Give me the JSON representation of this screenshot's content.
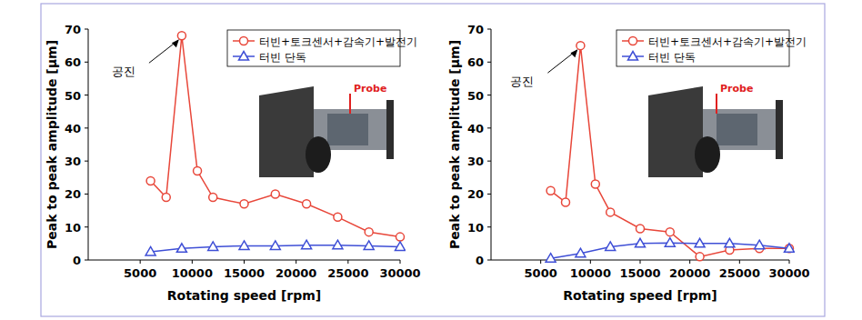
{
  "chart_data": [
    {
      "type": "line",
      "xlabel": "Rotating speed [rpm]",
      "ylabel": "Peak to peak amplitude [μm]",
      "annotation": "공진",
      "inset_label": "Probe",
      "xlim": [
        0,
        30000
      ],
      "xticks": [
        5000,
        10000,
        15000,
        20000,
        25000,
        30000
      ],
      "ylim": [
        0,
        70
      ],
      "yticks": [
        0,
        10,
        20,
        30,
        40,
        50,
        60,
        70
      ],
      "grid": false,
      "legend": "top-right",
      "series": [
        {
          "name": "터빈+토크센서+감속기+발전기",
          "color": "#e8473a",
          "marker": "circle",
          "x": [
            6000,
            7500,
            9000,
            10500,
            12000,
            15000,
            18000,
            21000,
            24000,
            27000,
            30000
          ],
          "values": [
            24,
            19,
            68,
            27,
            19,
            17,
            20,
            17,
            13,
            8.5,
            7
          ]
        },
        {
          "name": "터빈 단독",
          "color": "#3f4fd6",
          "marker": "triangle",
          "x": [
            6000,
            9000,
            12000,
            15000,
            18000,
            21000,
            24000,
            27000,
            30000
          ],
          "values": [
            2.5,
            3.5,
            4,
            4.3,
            4.3,
            4.5,
            4.5,
            4.3,
            4
          ]
        }
      ]
    },
    {
      "type": "line",
      "xlabel": "Rotating speed [rpm]",
      "ylabel": "Peak to peak amplitude [μm]",
      "annotation": "공진",
      "inset_label": "Probe",
      "xlim": [
        0,
        30000
      ],
      "xticks": [
        5000,
        10000,
        15000,
        20000,
        25000,
        30000
      ],
      "ylim": [
        0,
        70
      ],
      "yticks": [
        0,
        10,
        20,
        30,
        40,
        50,
        60,
        70
      ],
      "grid": false,
      "legend": "top-right",
      "series": [
        {
          "name": "터빈+토크센서+감속기+발전기",
          "color": "#e8473a",
          "marker": "circle",
          "x": [
            6000,
            7500,
            9000,
            10500,
            12000,
            15000,
            18000,
            21000,
            24000,
            27000,
            30000
          ],
          "values": [
            21,
            17.5,
            65,
            23,
            14.5,
            9.5,
            8.5,
            1,
            3,
            3.5,
            3.5
          ]
        },
        {
          "name": "터빈 단독",
          "color": "#3f4fd6",
          "marker": "triangle",
          "x": [
            6000,
            9000,
            12000,
            15000,
            18000,
            21000,
            24000,
            27000,
            30000
          ],
          "values": [
            0.5,
            2,
            4,
            5,
            5.2,
            5,
            5,
            4.5,
            3.5
          ]
        }
      ]
    }
  ]
}
